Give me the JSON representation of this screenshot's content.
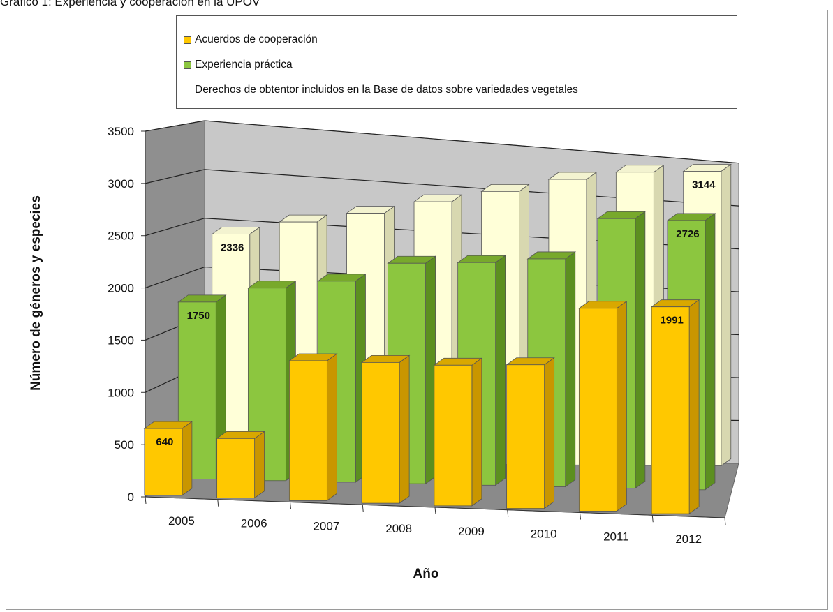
{
  "caption": "Gráfico 1: Experiencia y cooperación en la UPOV",
  "chart_data": {
    "type": "bar",
    "categories": [
      "2005",
      "2006",
      "2007",
      "2008",
      "2009",
      "2010",
      "2011",
      "2012"
    ],
    "series": [
      {
        "name": "Acuerdos de cooperación",
        "color": "#FFC800",
        "values": [
          640,
          570,
          1340,
          1350,
          1350,
          1380,
          1950,
          1991
        ],
        "data_labels": [
          "640",
          "",
          "",
          "",
          "",
          "",
          "",
          "1991"
        ]
      },
      {
        "name": "Experiencia práctica",
        "color": "#8CC63F",
        "values": [
          1750,
          1910,
          2000,
          2200,
          2230,
          2290,
          2720,
          2726
        ],
        "data_labels": [
          "1750",
          "",
          "",
          "",
          "",
          "",
          "",
          "2726"
        ]
      },
      {
        "name": "Derechos de obtentor incluidos en la Base de datos sobre variedades vegetales",
        "color": "#FFFFD8",
        "values": [
          2336,
          2480,
          2590,
          2730,
          2860,
          3010,
          3110,
          3144
        ],
        "data_labels": [
          "2336",
          "",
          "",
          "",
          "",
          "",
          "",
          "3144"
        ]
      }
    ],
    "ylim": [
      0,
      3500
    ],
    "yticks": [
      0,
      500,
      1000,
      1500,
      2000,
      2500,
      3000,
      3500
    ],
    "xlabel": "Año",
    "ylabel": "Número de géneros y especies",
    "grid": true,
    "legend_position": "top"
  }
}
